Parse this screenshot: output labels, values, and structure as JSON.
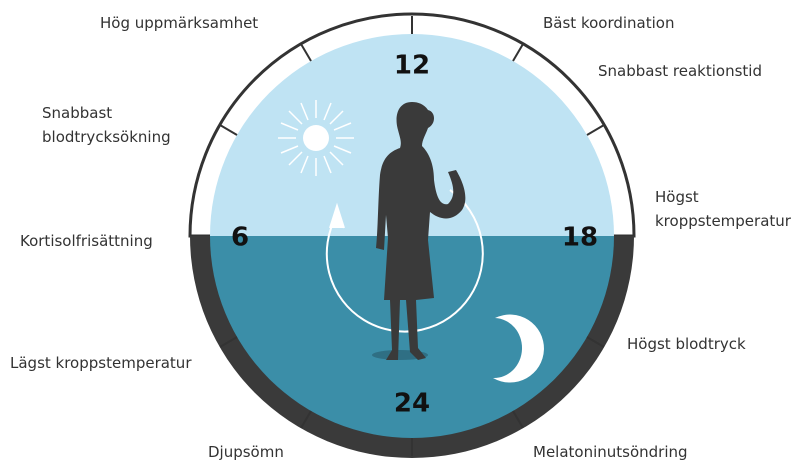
{
  "labels": {
    "high_alertness": "Hög uppmärksamhet",
    "best_coordination": "Bäst koordination",
    "fastest_reaction": "Snabbast reaktionstid",
    "bp_rise": [
      "Snabbast",
      "blodtrycksökning"
    ],
    "highest_temp": [
      "Högst",
      "kroppstemperatur"
    ],
    "cortisol": "Kortisolfrisättning",
    "highest_bp": "Högst blodtryck",
    "lowest_temp": "Lägst kroppstemperatur",
    "deep_sleep": "Djupsömn",
    "melatonin": "Melatoninutsöndring"
  },
  "hours": {
    "top": "12",
    "left": "6",
    "right": "18",
    "bottom": "24"
  }
}
